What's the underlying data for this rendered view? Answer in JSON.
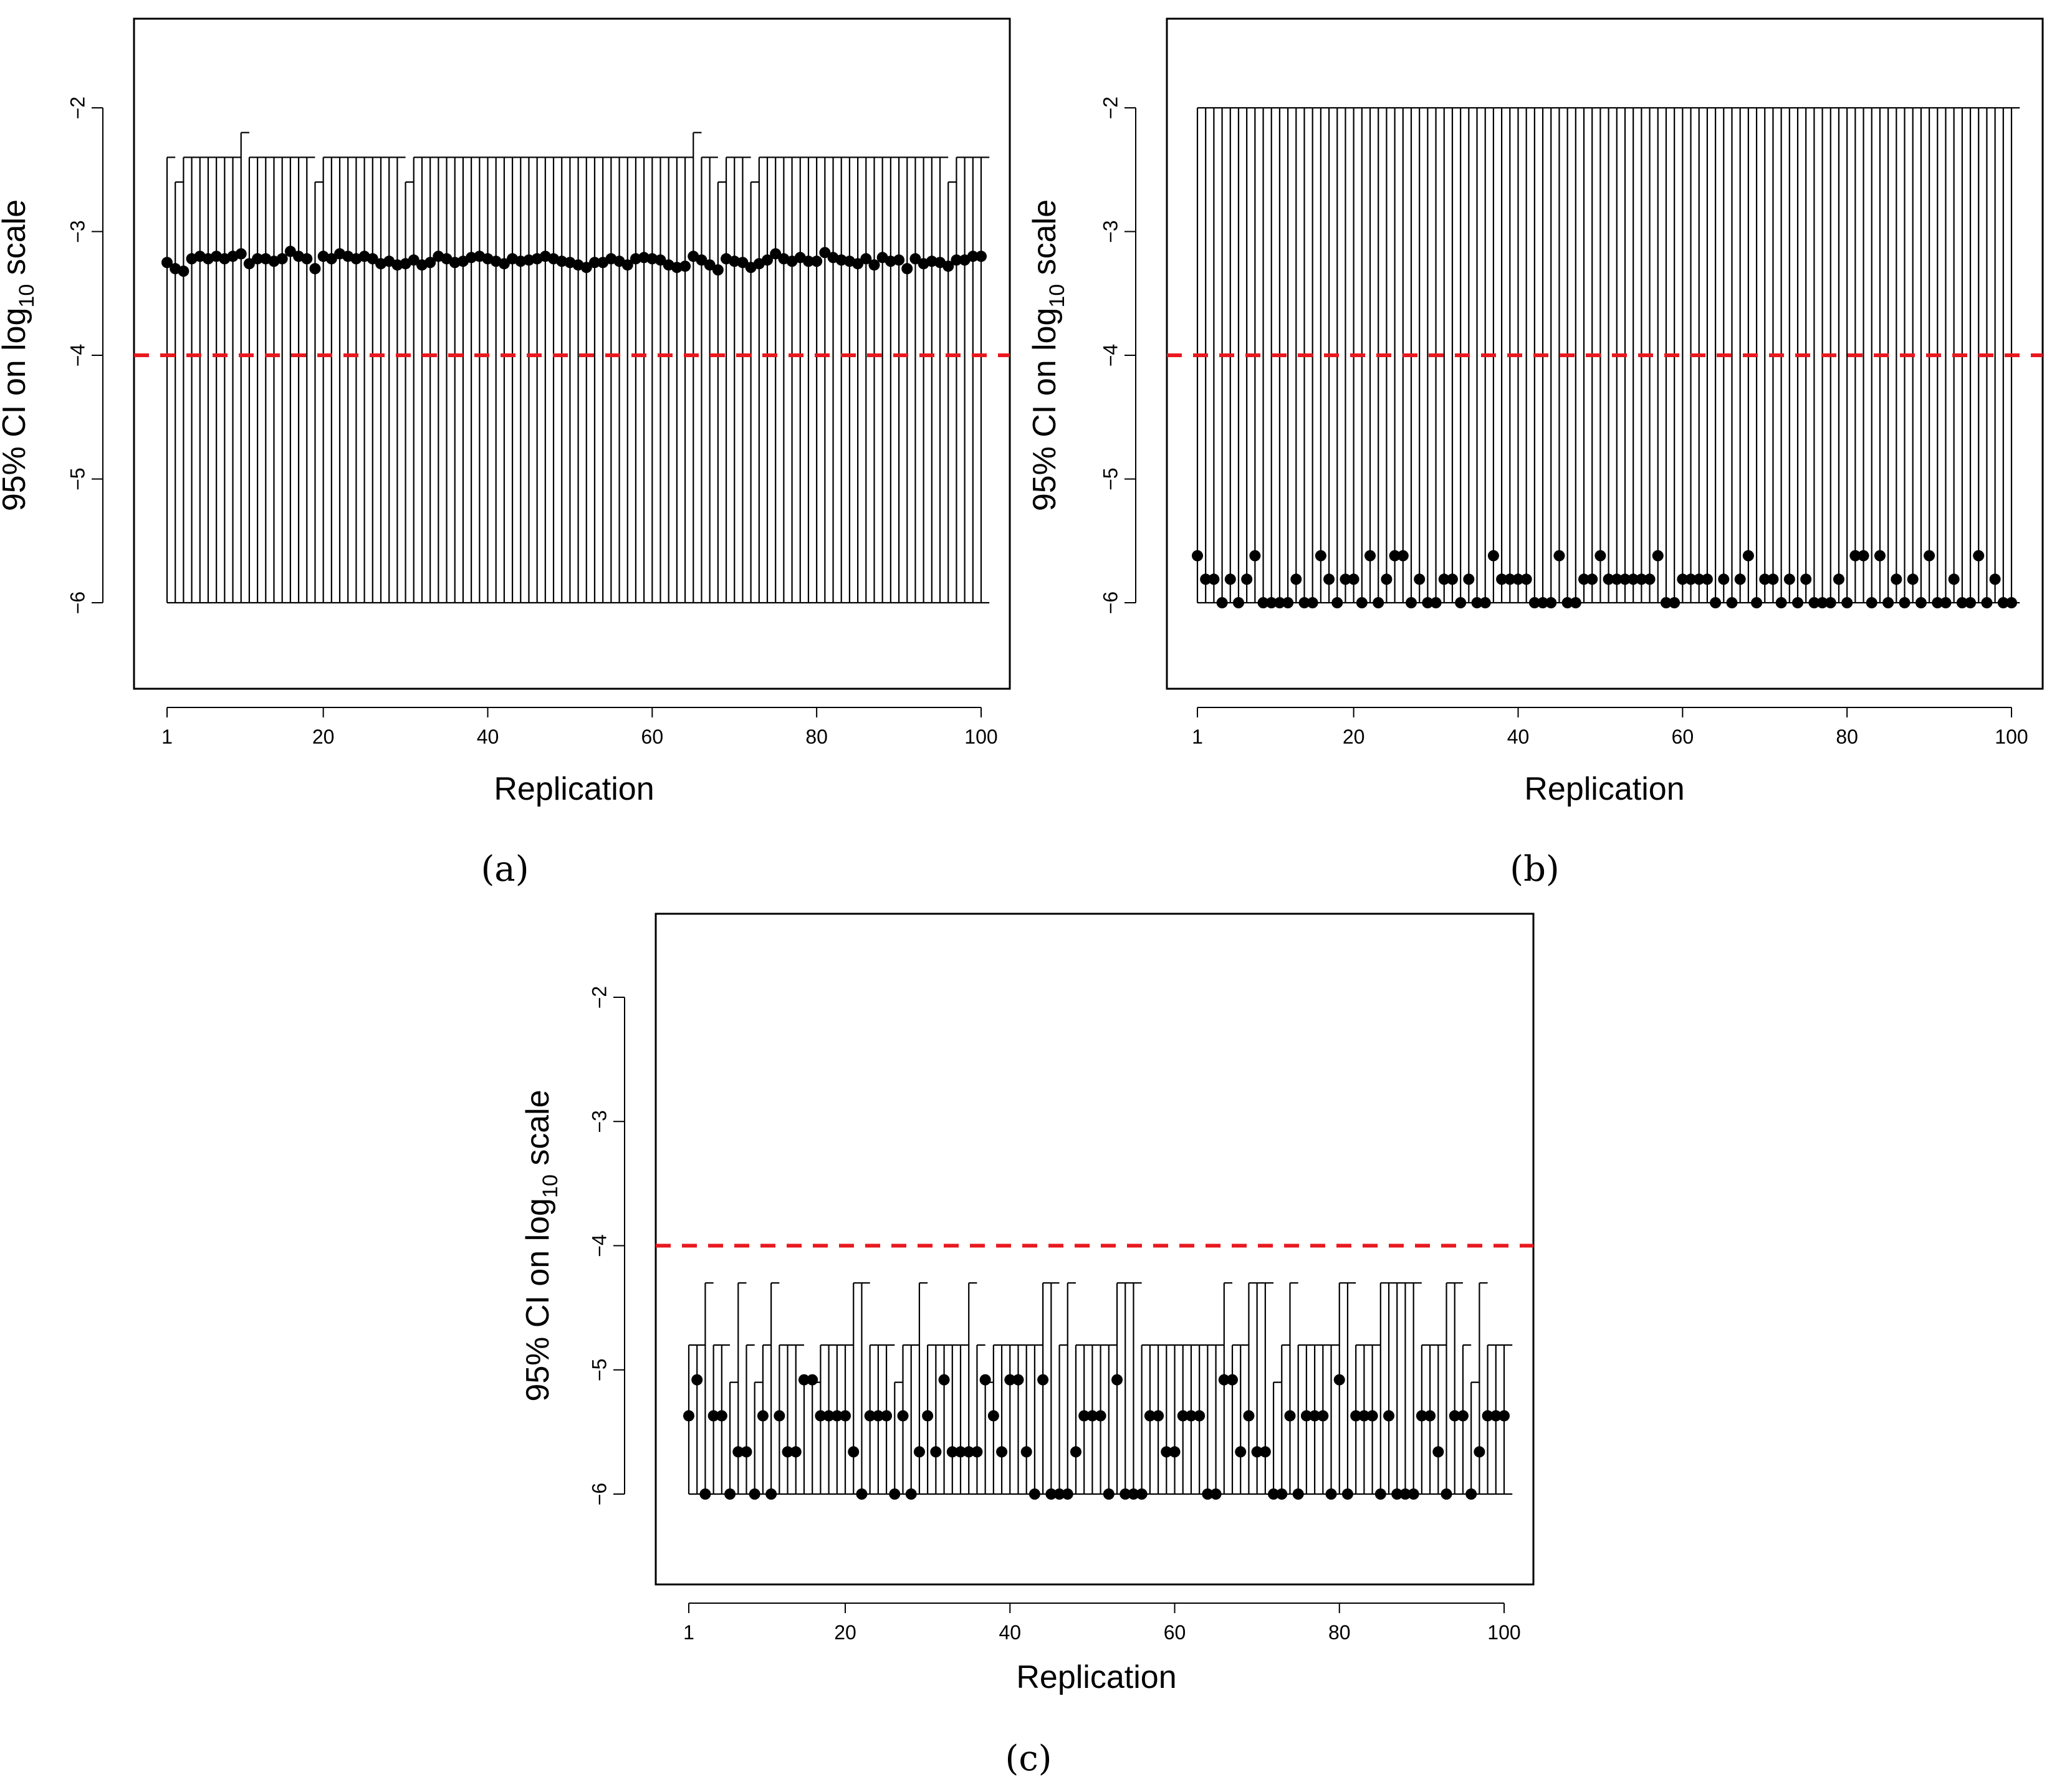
{
  "chart_data": [
    {
      "type": "errorbar",
      "panel_label": "(a)",
      "xlabel": "Replication",
      "ylabel": "95% CI on log",
      "ylabel_sub": "10",
      "ylabel_suffix": " scale",
      "xlim": [
        1,
        100
      ],
      "ylim": [
        -6.7,
        -1.3
      ],
      "x_ticks": [
        1,
        20,
        40,
        60,
        80,
        100
      ],
      "y_ticks": [
        -6,
        -5,
        -4,
        -3,
        -2
      ],
      "y_tick_labels": [
        "−6",
        "−5",
        "−4",
        "−3",
        "−2"
      ],
      "reference_line": {
        "y": -4,
        "color": "#e8191f",
        "style": "dashed"
      },
      "lower": -6,
      "upper_default": -2.4,
      "upper_exceptions": {
        "2": -2.6,
        "10": -2.2,
        "19": -2.6,
        "30": -2.6,
        "65": -2.2,
        "68": -2.6,
        "72": -2.6,
        "96": -2.6
      },
      "estimates": [
        -3.25,
        -3.3,
        -3.32,
        -3.22,
        -3.2,
        -3.22,
        -3.2,
        -3.22,
        -3.2,
        -3.18,
        -3.26,
        -3.22,
        -3.22,
        -3.24,
        -3.22,
        -3.16,
        -3.2,
        -3.22,
        -3.3,
        -3.2,
        -3.22,
        -3.18,
        -3.2,
        -3.22,
        -3.2,
        -3.22,
        -3.26,
        -3.24,
        -3.27,
        -3.26,
        -3.23,
        -3.27,
        -3.25,
        -3.2,
        -3.22,
        -3.25,
        -3.24,
        -3.21,
        -3.2,
        -3.22,
        -3.24,
        -3.26,
        -3.22,
        -3.24,
        -3.23,
        -3.22,
        -3.2,
        -3.22,
        -3.24,
        -3.25,
        -3.27,
        -3.29,
        -3.25,
        -3.25,
        -3.22,
        -3.24,
        -3.27,
        -3.22,
        -3.21,
        -3.22,
        -3.23,
        -3.27,
        -3.29,
        -3.28,
        -3.2,
        -3.23,
        -3.27,
        -3.31,
        -3.22,
        -3.24,
        -3.25,
        -3.29,
        -3.26,
        -3.23,
        -3.18,
        -3.22,
        -3.24,
        -3.21,
        -3.24,
        -3.24,
        -3.17,
        -3.21,
        -3.23,
        -3.24,
        -3.26,
        -3.22,
        -3.27,
        -3.21,
        -3.24,
        -3.23,
        -3.3,
        -3.22,
        -3.26,
        -3.24,
        -3.25,
        -3.28,
        -3.23,
        -3.23,
        -3.2,
        -3.2
      ]
    },
    {
      "type": "errorbar",
      "panel_label": "(b)",
      "xlabel": "Replication",
      "ylabel": "95% CI on log",
      "ylabel_sub": "10",
      "ylabel_suffix": " scale",
      "xlim": [
        1,
        100
      ],
      "ylim": [
        -6.7,
        -1.3
      ],
      "x_ticks": [
        1,
        20,
        40,
        60,
        80,
        100
      ],
      "y_ticks": [
        -6,
        -5,
        -4,
        -3,
        -2
      ],
      "y_tick_labels": [
        "−6",
        "−5",
        "−4",
        "−3",
        "−2"
      ],
      "reference_line": {
        "y": -4,
        "color": "#e8191f",
        "style": "dashed"
      },
      "lower": -6,
      "upper_default": -2.0,
      "upper_exceptions": {},
      "estimates": [
        -5.62,
        -5.81,
        -5.81,
        -6.0,
        -5.81,
        -6.0,
        -5.81,
        -5.62,
        -6.0,
        -6.0,
        -6.0,
        -6.0,
        -5.81,
        -6.0,
        -6.0,
        -5.62,
        -5.81,
        -6.0,
        -5.81,
        -5.81,
        -6.0,
        -5.62,
        -6.0,
        -5.81,
        -5.62,
        -5.62,
        -6.0,
        -5.81,
        -6.0,
        -6.0,
        -5.81,
        -5.81,
        -6.0,
        -5.81,
        -6.0,
        -6.0,
        -5.62,
        -5.81,
        -5.81,
        -5.81,
        -5.81,
        -6.0,
        -6.0,
        -6.0,
        -5.62,
        -6.0,
        -6.0,
        -5.81,
        -5.81,
        -5.62,
        -5.81,
        -5.81,
        -5.81,
        -5.81,
        -5.81,
        -5.81,
        -5.62,
        -6.0,
        -6.0,
        -5.81,
        -5.81,
        -5.81,
        -5.81,
        -6.0,
        -5.81,
        -6.0,
        -5.81,
        -5.62,
        -6.0,
        -5.81,
        -5.81,
        -6.0,
        -5.81,
        -6.0,
        -5.81,
        -6.0,
        -6.0,
        -6.0,
        -5.81,
        -6.0,
        -5.62,
        -5.62,
        -6.0,
        -5.62,
        -6.0,
        -5.81,
        -6.0,
        -5.81,
        -6.0,
        -5.62,
        -6.0,
        -6.0,
        -5.81,
        -6.0,
        -6.0,
        -5.62,
        -6.0,
        -5.81,
        -6.0,
        -6.0
      ]
    },
    {
      "type": "errorbar",
      "panel_label": "(c)",
      "xlabel": "Replication",
      "ylabel": "95% CI on log",
      "ylabel_sub": "10",
      "ylabel_suffix": " scale",
      "xlim": [
        1,
        100
      ],
      "ylim": [
        -6.7,
        -1.3
      ],
      "x_ticks": [
        1,
        20,
        40,
        60,
        80,
        100
      ],
      "y_ticks": [
        -6,
        -5,
        -4,
        -3,
        -2
      ],
      "y_tick_labels": [
        "−6",
        "−5",
        "−4",
        "−3",
        "−2"
      ],
      "reference_line": {
        "y": -4,
        "color": "#e8191f",
        "style": "dashed"
      },
      "lower": -6,
      "upper_default": -4.8,
      "upper_exceptions": {
        "3": -4.3,
        "6": -5.1,
        "7": -4.3,
        "9": -5.1,
        "11": -4.3,
        "15": -5.1,
        "16": -5.1,
        "21": -4.3,
        "22": -4.3,
        "26": -5.1,
        "29": -4.3,
        "35": -4.3,
        "37": -5.1,
        "44": -4.3,
        "45": -4.3,
        "47": -4.3,
        "53": -4.3,
        "54": -4.3,
        "55": -4.3,
        "66": -4.3,
        "69": -4.3,
        "70": -4.3,
        "71": -4.3,
        "72": -5.1,
        "74": -4.3,
        "80": -4.3,
        "81": -4.3,
        "85": -4.3,
        "86": -4.3,
        "87": -4.3,
        "88": -4.3,
        "89": -4.3,
        "93": -4.3,
        "94": -4.3,
        "96": -5.1,
        "97": -4.3
      },
      "estimates": [
        -5.37,
        -5.08,
        -6.0,
        -5.37,
        -5.37,
        -6.0,
        -5.66,
        -5.66,
        -6.0,
        -5.37,
        -6.0,
        -5.37,
        -5.66,
        -5.66,
        -5.08,
        -5.08,
        -5.37,
        -5.37,
        -5.37,
        -5.37,
        -5.66,
        -6.0,
        -5.37,
        -5.37,
        -5.37,
        -6.0,
        -5.37,
        -6.0,
        -5.66,
        -5.37,
        -5.66,
        -5.08,
        -5.66,
        -5.66,
        -5.66,
        -5.66,
        -5.08,
        -5.37,
        -5.66,
        -5.08,
        -5.08,
        -5.66,
        -6.0,
        -5.08,
        -6.0,
        -6.0,
        -6.0,
        -5.66,
        -5.37,
        -5.37,
        -5.37,
        -6.0,
        -5.08,
        -6.0,
        -6.0,
        -6.0,
        -5.37,
        -5.37,
        -5.66,
        -5.66,
        -5.37,
        -5.37,
        -5.37,
        -6.0,
        -6.0,
        -5.08,
        -5.08,
        -5.66,
        -5.37,
        -5.66,
        -5.66,
        -6.0,
        -6.0,
        -5.37,
        -6.0,
        -5.37,
        -5.37,
        -5.37,
        -6.0,
        -5.08,
        -6.0,
        -5.37,
        -5.37,
        -5.37,
        -6.0,
        -5.37,
        -6.0,
        -6.0,
        -6.0,
        -5.37,
        -5.37,
        -5.66,
        -6.0,
        -5.37,
        -5.37,
        -6.0,
        -5.66,
        -5.37,
        -5.37,
        -5.37
      ]
    }
  ]
}
